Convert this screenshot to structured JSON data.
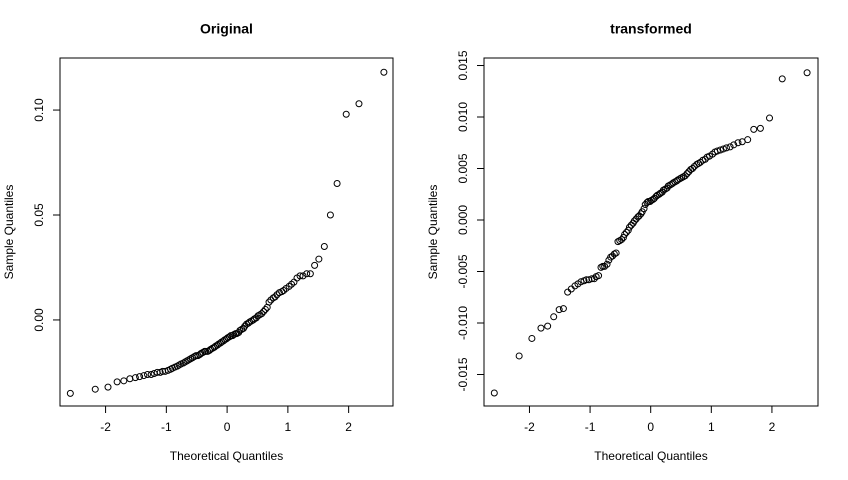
{
  "chart_data": [
    {
      "type": "scatter",
      "title": "Original",
      "xlabel": "Theoretical Quantiles",
      "ylabel": "Sample Quantiles",
      "x": [
        -2.58,
        -2.17,
        -1.96,
        -1.81,
        -1.7,
        -1.6,
        -1.51,
        -1.44,
        -1.37,
        -1.31,
        -1.25,
        -1.2,
        -1.15,
        -1.1,
        -1.06,
        -1.02,
        -0.97,
        -0.93,
        -0.9,
        -0.86,
        -0.82,
        -0.79,
        -0.76,
        -0.72,
        -0.69,
        -0.66,
        -0.63,
        -0.6,
        -0.57,
        -0.54,
        -0.51,
        -0.48,
        -0.45,
        -0.43,
        -0.4,
        -0.37,
        -0.35,
        -0.32,
        -0.29,
        -0.27,
        -0.24,
        -0.21,
        -0.19,
        -0.16,
        -0.14,
        -0.11,
        -0.09,
        -0.06,
        -0.04,
        -0.01,
        0.01,
        0.04,
        0.06,
        0.09,
        0.11,
        0.14,
        0.16,
        0.19,
        0.21,
        0.24,
        0.27,
        0.29,
        0.32,
        0.35,
        0.37,
        0.4,
        0.43,
        0.45,
        0.48,
        0.51,
        0.54,
        0.57,
        0.6,
        0.63,
        0.66,
        0.69,
        0.72,
        0.76,
        0.79,
        0.82,
        0.86,
        0.9,
        0.93,
        0.97,
        1.02,
        1.06,
        1.1,
        1.15,
        1.2,
        1.25,
        1.31,
        1.37,
        1.44,
        1.51,
        1.6,
        1.7,
        1.81,
        1.96,
        2.17,
        2.58
      ],
      "values": [
        -0.035,
        -0.033,
        -0.032,
        -0.0295,
        -0.029,
        -0.028,
        -0.0275,
        -0.027,
        -0.0265,
        -0.026,
        -0.026,
        -0.0255,
        -0.025,
        -0.025,
        -0.0245,
        -0.0245,
        -0.024,
        -0.0235,
        -0.023,
        -0.0225,
        -0.022,
        -0.0215,
        -0.021,
        -0.0205,
        -0.02,
        -0.0195,
        -0.019,
        -0.0185,
        -0.018,
        -0.0175,
        -0.017,
        -0.017,
        -0.0165,
        -0.016,
        -0.0155,
        -0.015,
        -0.015,
        -0.015,
        -0.0145,
        -0.014,
        -0.0135,
        -0.013,
        -0.0125,
        -0.012,
        -0.0115,
        -0.011,
        -0.0105,
        -0.01,
        -0.0095,
        -0.009,
        -0.0085,
        -0.008,
        -0.0075,
        -0.0075,
        -0.007,
        -0.0065,
        -0.0065,
        -0.006,
        -0.005,
        -0.0045,
        -0.004,
        -0.003,
        -0.002,
        -0.0015,
        -0.001,
        -0.0005,
        0,
        0.0005,
        0.001,
        0.002,
        0.0025,
        0.003,
        0.004,
        0.005,
        0.006,
        0.0085,
        0.0095,
        0.0105,
        0.011,
        0.012,
        0.013,
        0.0135,
        0.014,
        0.015,
        0.016,
        0.017,
        0.018,
        0.02,
        0.021,
        0.021,
        0.022,
        0.022,
        0.026,
        0.029,
        0.035,
        0.05,
        0.065,
        0.098,
        0.103,
        0.118
      ],
      "xlim": [
        -2.75,
        2.73
      ],
      "ylim": [
        -0.041,
        0.1248
      ],
      "xticks": [
        -2,
        -1,
        0,
        1,
        2
      ],
      "yticks": [
        {
          "value": 0,
          "label": "0.00"
        },
        0.05,
        {
          "value": 0.1,
          "label": "0.10"
        }
      ]
    },
    {
      "type": "scatter",
      "title": "transformed",
      "xlabel": "Theoretical Quantiles",
      "ylabel": "Sample Quantiles",
      "x": [
        -2.58,
        -2.17,
        -1.96,
        -1.81,
        -1.7,
        -1.6,
        -1.51,
        -1.44,
        -1.37,
        -1.31,
        -1.25,
        -1.2,
        -1.15,
        -1.1,
        -1.06,
        -1.02,
        -0.97,
        -0.93,
        -0.9,
        -0.86,
        -0.82,
        -0.79,
        -0.76,
        -0.72,
        -0.69,
        -0.66,
        -0.63,
        -0.6,
        -0.57,
        -0.54,
        -0.51,
        -0.48,
        -0.45,
        -0.43,
        -0.4,
        -0.37,
        -0.35,
        -0.32,
        -0.29,
        -0.27,
        -0.24,
        -0.21,
        -0.19,
        -0.16,
        -0.14,
        -0.11,
        -0.09,
        -0.06,
        -0.04,
        -0.01,
        0.01,
        0.04,
        0.06,
        0.09,
        0.11,
        0.14,
        0.16,
        0.19,
        0.21,
        0.24,
        0.27,
        0.29,
        0.32,
        0.35,
        0.37,
        0.4,
        0.43,
        0.45,
        0.48,
        0.51,
        0.54,
        0.57,
        0.6,
        0.63,
        0.66,
        0.69,
        0.72,
        0.76,
        0.79,
        0.82,
        0.86,
        0.9,
        0.93,
        0.97,
        1.02,
        1.06,
        1.1,
        1.15,
        1.2,
        1.25,
        1.31,
        1.37,
        1.44,
        1.51,
        1.6,
        1.7,
        1.81,
        1.96,
        2.17,
        2.58
      ],
      "values": [
        -0.0168,
        -0.0132,
        -0.0115,
        -0.0105,
        -0.0103,
        -0.0094,
        -0.0087,
        -0.0086,
        -0.007,
        -0.0067,
        -0.0064,
        -0.0062,
        -0.006,
        -0.0059,
        -0.0058,
        -0.0058,
        -0.0057,
        -0.0057,
        -0.0055,
        -0.0054,
        -0.0046,
        -0.0045,
        -0.0045,
        -0.0043,
        -0.0039,
        -0.0036,
        -0.0035,
        -0.0033,
        -0.0032,
        -0.0021,
        -0.002,
        -0.0019,
        -0.0017,
        -0.0014,
        -0.0012,
        -0.001,
        -0.0007,
        -0.0005,
        -0.0003,
        -0.0001,
        0.0001,
        0.0003,
        0.0004,
        0.0006,
        0.0008,
        0.0011,
        0.0015,
        0.0017,
        0.0018,
        0.0018,
        0.0019,
        0.002,
        0.0021,
        0.0023,
        0.0024,
        0.0025,
        0.0026,
        0.0027,
        0.0029,
        0.003,
        0.0031,
        0.0033,
        0.0034,
        0.0035,
        0.0036,
        0.0037,
        0.0038,
        0.0039,
        0.004,
        0.0041,
        0.0042,
        0.0043,
        0.0045,
        0.0047,
        0.0049,
        0.005,
        0.0052,
        0.0054,
        0.0055,
        0.0056,
        0.0058,
        0.0059,
        0.0061,
        0.0062,
        0.0064,
        0.0066,
        0.0067,
        0.0068,
        0.0069,
        0.007,
        0.0071,
        0.0073,
        0.0075,
        0.0076,
        0.0078,
        0.0088,
        0.0089,
        0.0099,
        0.0137,
        0.0143
      ],
      "xlim": [
        -2.75,
        2.76
      ],
      "ylim": [
        -0.01806,
        0.01573
      ],
      "xticks": [
        -2,
        -1,
        0,
        1,
        2
      ],
      "yticks": [
        -0.015,
        {
          "value": -0.01,
          "label": "-0.010"
        },
        -0.005,
        {
          "value": 0,
          "label": "0.000"
        },
        0.005,
        {
          "value": 0.01,
          "label": "0.010"
        },
        0.015
      ]
    }
  ]
}
